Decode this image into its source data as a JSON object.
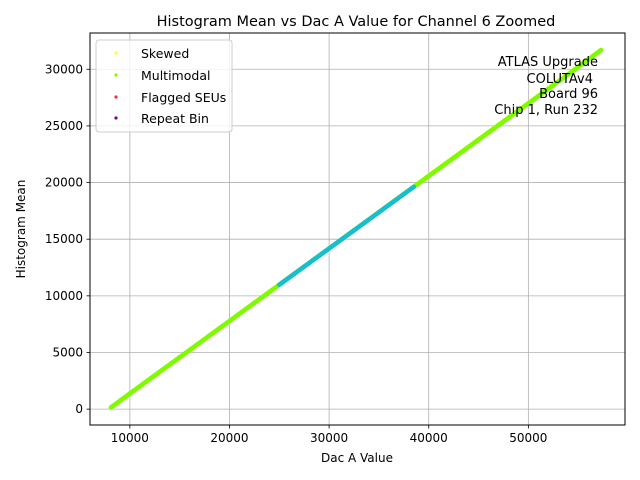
{
  "chart_data": {
    "type": "scatter",
    "title": "Histogram Mean vs Dac A Value for Channel 6 Zoomed",
    "xlabel": "Dac A Value",
    "ylabel": "Histogram Mean",
    "xlim": [
      6000,
      59700
    ],
    "ylim": [
      -1400,
      33200
    ],
    "xticks": [
      10000,
      20000,
      30000,
      40000,
      50000
    ],
    "yticks": [
      0,
      5000,
      10000,
      15000,
      20000,
      25000,
      30000
    ],
    "grid": true,
    "legend_position": "upper left",
    "series": [
      {
        "name": "Skewed",
        "color": "#ffff33",
        "x": [
          8100,
          57300
        ],
        "y": [
          150,
          31700
        ]
      },
      {
        "name": "Multimodal",
        "color": "#7cfc00",
        "x": [
          8100,
          10000,
          12500,
          15000,
          17500,
          20000,
          22500,
          25000,
          27500,
          30000,
          32500,
          35000,
          37500,
          40000,
          42500,
          45000,
          47500,
          50000,
          52500,
          55000,
          57300
        ],
        "y": [
          150,
          1380,
          2980,
          4580,
          6180,
          7780,
          9380,
          10980,
          12580,
          14180,
          15780,
          17380,
          18980,
          20580,
          22180,
          23780,
          25380,
          26980,
          28580,
          30180,
          31700
        ]
      },
      {
        "name": "Flagged SEUs",
        "color": "#e8332e",
        "x": [],
        "y": []
      },
      {
        "name": "Repeat Bin",
        "color": "#800080",
        "x": [],
        "y": []
      },
      {
        "name": "",
        "color": "#17becf",
        "x": [
          25000,
          26500,
          28000,
          29500,
          31000,
          32500,
          33500,
          35000,
          36500,
          37500,
          38500
        ],
        "y": [
          10980,
          11940,
          12900,
          13860,
          14820,
          15780,
          16420,
          17380,
          18340,
          18980,
          19620
        ]
      }
    ],
    "annotation": [
      "ATLAS Upgrade",
      "COLUTAv4",
      "Board 96",
      "Chip 1, Run 232"
    ]
  }
}
